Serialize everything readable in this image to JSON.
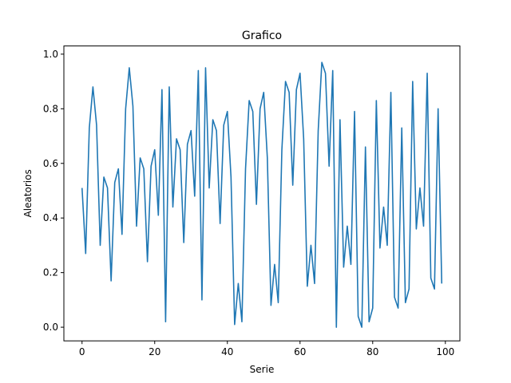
{
  "chart_data": {
    "type": "line",
    "title": "Grafico",
    "xlabel": "Serie",
    "ylabel": "Aleatorios",
    "xlim": [
      -5,
      104
    ],
    "ylim": [
      -0.05,
      1.03
    ],
    "xticks": [
      0,
      20,
      40,
      60,
      80,
      100
    ],
    "xtick_labels": [
      "0",
      "20",
      "40",
      "60",
      "80",
      "100"
    ],
    "yticks": [
      0.0,
      0.2,
      0.4,
      0.6,
      0.8,
      1.0
    ],
    "ytick_labels": [
      "0.0",
      "0.2",
      "0.4",
      "0.6",
      "0.8",
      "1.0"
    ],
    "grid": false,
    "line_color": "#1f77b4",
    "series": [
      {
        "values": [
          0.51,
          0.27,
          0.73,
          0.88,
          0.74,
          0.3,
          0.55,
          0.51,
          0.17,
          0.53,
          0.58,
          0.34,
          0.8,
          0.95,
          0.81,
          0.37,
          0.62,
          0.58,
          0.24,
          0.59,
          0.65,
          0.41,
          0.87,
          0.02,
          0.88,
          0.44,
          0.69,
          0.65,
          0.31,
          0.67,
          0.72,
          0.48,
          0.94,
          0.1,
          0.95,
          0.51,
          0.76,
          0.72,
          0.38,
          0.74,
          0.79,
          0.55,
          0.01,
          0.16,
          0.02,
          0.58,
          0.83,
          0.79,
          0.45,
          0.8,
          0.86,
          0.62,
          0.08,
          0.23,
          0.09,
          0.65,
          0.9,
          0.86,
          0.52,
          0.87,
          0.93,
          0.69,
          0.15,
          0.3,
          0.16,
          0.72,
          0.97,
          0.93,
          0.59,
          0.94,
          0.0,
          0.76,
          0.22,
          0.37,
          0.23,
          0.79,
          0.04,
          0.0,
          0.66,
          0.02,
          0.07,
          0.83,
          0.29,
          0.44,
          0.3,
          0.86,
          0.11,
          0.07,
          0.73,
          0.09,
          0.14,
          0.9,
          0.36,
          0.51,
          0.37,
          0.93,
          0.18,
          0.14,
          0.8,
          0.16
        ]
      }
    ]
  }
}
